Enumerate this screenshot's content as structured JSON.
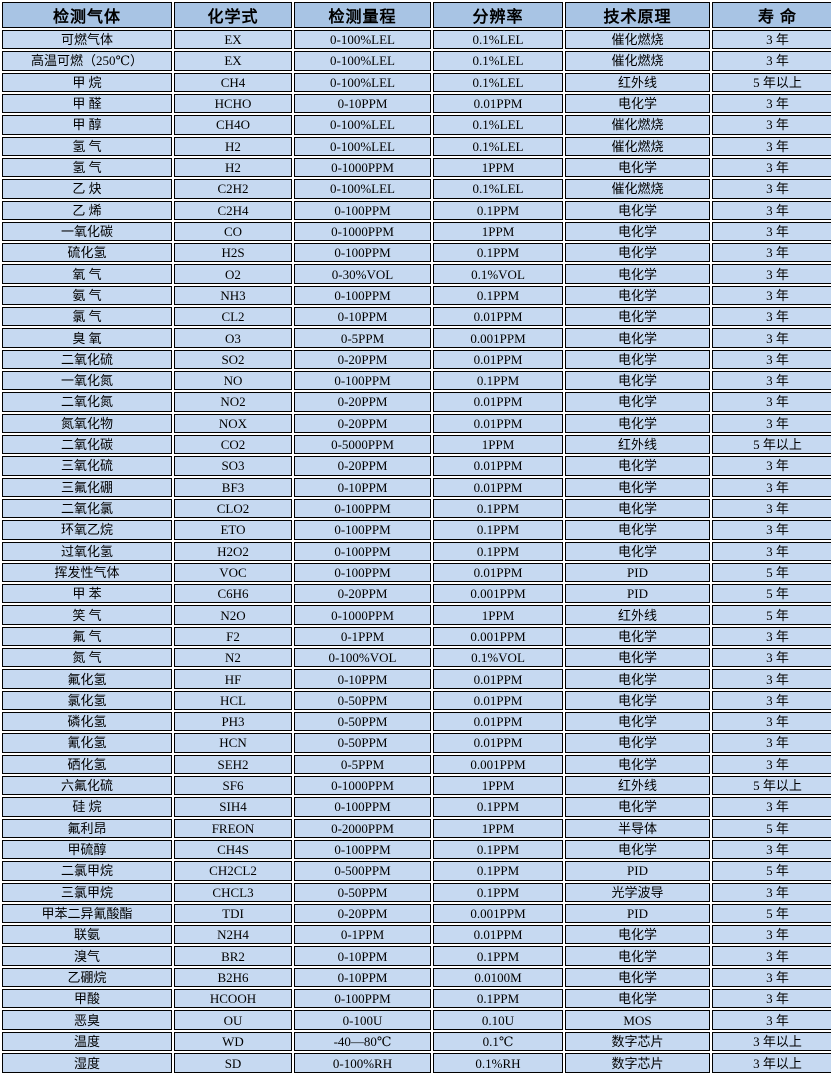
{
  "colors": {
    "header_bg": "#a8c4e4",
    "cell_bg": "#c6d9f1",
    "border": "#000000",
    "gap": "#ffffff",
    "text": "#000000"
  },
  "table": {
    "headers": [
      "检测气体",
      "化学式",
      "检测量程",
      "分辨率",
      "技术原理",
      "寿 命"
    ],
    "rows": [
      [
        "可燃气体",
        "EX",
        "0-100%LEL",
        "0.1%LEL",
        "催化燃烧",
        "3 年"
      ],
      [
        "高温可燃（250℃）",
        "EX",
        "0-100%LEL",
        "0.1%LEL",
        "催化燃烧",
        "3 年"
      ],
      [
        "甲 烷",
        "CH4",
        "0-100%LEL",
        "0.1%LEL",
        "红外线",
        "5 年以上"
      ],
      [
        "甲 醛",
        "HCHO",
        "0-10PPM",
        "0.01PPM",
        "电化学",
        "3 年"
      ],
      [
        "甲 醇",
        "CH4O",
        "0-100%LEL",
        "0.1%LEL",
        "催化燃烧",
        "3 年"
      ],
      [
        "氢 气",
        "H2",
        "0-100%LEL",
        "0.1%LEL",
        "催化燃烧",
        "3 年"
      ],
      [
        "氢 气",
        "H2",
        "0-1000PPM",
        "1PPM",
        "电化学",
        "3 年"
      ],
      [
        "乙 炔",
        "C2H2",
        "0-100%LEL",
        "0.1%LEL",
        "催化燃烧",
        "3 年"
      ],
      [
        "乙 烯",
        "C2H4",
        "0-100PPM",
        "0.1PPM",
        "电化学",
        "3 年"
      ],
      [
        "一氧化碳",
        "CO",
        "0-1000PPM",
        "1PPM",
        "电化学",
        "3 年"
      ],
      [
        "硫化氢",
        "H2S",
        "0-100PPM",
        "0.1PPM",
        "电化学",
        "3 年"
      ],
      [
        "氧 气",
        "O2",
        "0-30%VOL",
        "0.1%VOL",
        "电化学",
        "3 年"
      ],
      [
        "氨 气",
        "NH3",
        "0-100PPM",
        "0.1PPM",
        "电化学",
        "3 年"
      ],
      [
        "氯 气",
        "CL2",
        "0-10PPM",
        "0.01PPM",
        "电化学",
        "3 年"
      ],
      [
        "臭 氧",
        "O3",
        "0-5PPM",
        "0.001PPM",
        "电化学",
        "3 年"
      ],
      [
        "二氧化硫",
        "SO2",
        "0-20PPM",
        "0.01PPM",
        "电化学",
        "3 年"
      ],
      [
        "一氧化氮",
        "NO",
        "0-100PPM",
        "0.1PPM",
        "电化学",
        "3 年"
      ],
      [
        "二氧化氮",
        "NO2",
        "0-20PPM",
        "0.01PPM",
        "电化学",
        "3 年"
      ],
      [
        "氮氧化物",
        "NOX",
        "0-20PPM",
        "0.01PPM",
        "电化学",
        "3 年"
      ],
      [
        "二氧化碳",
        "CO2",
        "0-5000PPM",
        "1PPM",
        "红外线",
        "5 年以上"
      ],
      [
        "三氧化硫",
        "SO3",
        "0-20PPM",
        "0.01PPM",
        "电化学",
        "3 年"
      ],
      [
        "三氟化硼",
        "BF3",
        "0-10PPM",
        "0.01PPM",
        "电化学",
        "3 年"
      ],
      [
        "二氧化氯",
        "CLO2",
        "0-100PPM",
        "0.1PPM",
        "电化学",
        "3 年"
      ],
      [
        "环氧乙烷",
        "ETO",
        "0-100PPM",
        "0.1PPM",
        "电化学",
        "3 年"
      ],
      [
        "过氧化氢",
        "H2O2",
        "0-100PPM",
        "0.1PPM",
        "电化学",
        "3 年"
      ],
      [
        "挥发性气体",
        "VOC",
        "0-100PPM",
        "0.01PPM",
        "PID",
        "5 年"
      ],
      [
        "甲 苯",
        "C6H6",
        "0-20PPM",
        "0.001PPM",
        "PID",
        "5 年"
      ],
      [
        "笑 气",
        "N2O",
        "0-1000PPM",
        "1PPM",
        "红外线",
        "5 年"
      ],
      [
        "氟 气",
        "F2",
        "0-1PPM",
        "0.001PPM",
        "电化学",
        "3 年"
      ],
      [
        "氮 气",
        "N2",
        "0-100%VOL",
        "0.1%VOL",
        "电化学",
        "3 年"
      ],
      [
        "氟化氢",
        "HF",
        "0-10PPM",
        "0.01PPM",
        "电化学",
        "3 年"
      ],
      [
        "氯化氢",
        "HCL",
        "0-50PPM",
        "0.01PPM",
        "电化学",
        "3 年"
      ],
      [
        "磷化氢",
        "PH3",
        "0-50PPM",
        "0.01PPM",
        "电化学",
        "3 年"
      ],
      [
        "氰化氢",
        "HCN",
        "0-50PPM",
        "0.01PPM",
        "电化学",
        "3 年"
      ],
      [
        "硒化氢",
        "SEH2",
        "0-5PPM",
        "0.001PPM",
        "电化学",
        "3 年"
      ],
      [
        "六氟化硫",
        "SF6",
        "0-1000PPM",
        "1PPM",
        "红外线",
        "5 年以上"
      ],
      [
        "硅 烷",
        "SIH4",
        "0-100PPM",
        "0.1PPM",
        "电化学",
        "3 年"
      ],
      [
        "氟利昂",
        "FREON",
        "0-2000PPM",
        "1PPM",
        "半导体",
        "5 年"
      ],
      [
        "甲硫醇",
        "CH4S",
        "0-100PPM",
        "0.1PPM",
        "电化学",
        "3 年"
      ],
      [
        "二氯甲烷",
        "CH2CL2",
        "0-500PPM",
        "0.1PPM",
        "PID",
        "5 年"
      ],
      [
        "三氯甲烷",
        "CHCL3",
        "0-50PPM",
        "0.1PPM",
        "光学波导",
        "3 年"
      ],
      [
        "甲苯二异氰酸酯",
        "TDI",
        "0-20PPM",
        "0.001PPM",
        "PID",
        "5 年"
      ],
      [
        "联氨",
        "N2H4",
        "0-1PPM",
        "0.01PPM",
        "电化学",
        "3 年"
      ],
      [
        "溴气",
        "BR2",
        "0-10PPM",
        "0.1PPM",
        "电化学",
        "3 年"
      ],
      [
        "乙硼烷",
        "B2H6",
        "0-10PPM",
        "0.0100M",
        "电化学",
        "3 年"
      ],
      [
        "甲酸",
        "HCOOH",
        "0-100PPM",
        "0.1PPM",
        "电化学",
        "3 年"
      ],
      [
        "恶臭",
        "OU",
        "0-100U",
        "0.10U",
        "MOS",
        "3 年"
      ],
      [
        "温度",
        "WD",
        "-40—80℃",
        "0.1℃",
        "数字芯片",
        "3 年以上"
      ],
      [
        "湿度",
        "SD",
        "0-100%RH",
        "0.1%RH",
        "数字芯片",
        "3 年以上"
      ]
    ]
  }
}
